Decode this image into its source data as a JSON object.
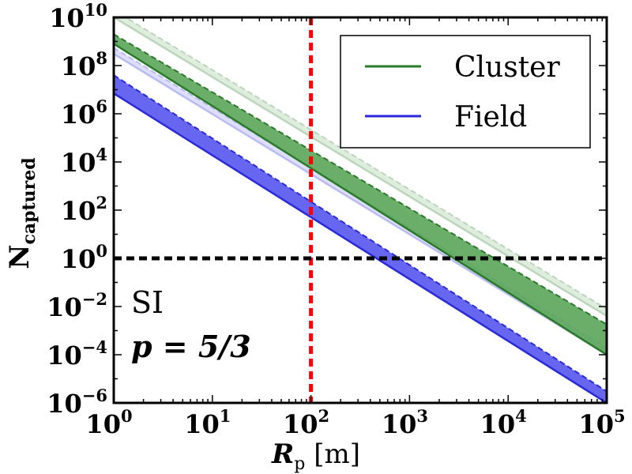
{
  "chart_data": {
    "type": "line",
    "xscale": "log",
    "yscale": "log",
    "xlim": [
      1,
      100000
    ],
    "ylim": [
      1e-06,
      10000000000
    ],
    "xlabel": "R_p [m]",
    "ylabel": "N_captured",
    "xticks": [
      1,
      10,
      100,
      1000,
      10000,
      100000
    ],
    "yticks": [
      1e-06,
      0.0001,
      0.01,
      1,
      100,
      10000,
      1000000,
      100000000,
      10000000000
    ],
    "xtick_labels": [
      {
        "base": "10",
        "exp": "0"
      },
      {
        "base": "10",
        "exp": "1"
      },
      {
        "base": "10",
        "exp": "2"
      },
      {
        "base": "10",
        "exp": "3"
      },
      {
        "base": "10",
        "exp": "4"
      },
      {
        "base": "10",
        "exp": "5"
      }
    ],
    "ytick_labels": [
      {
        "base": "10",
        "exp": "−6"
      },
      {
        "base": "10",
        "exp": "−4"
      },
      {
        "base": "10",
        "exp": "−2"
      },
      {
        "base": "10",
        "exp": "0"
      },
      {
        "base": "10",
        "exp": "2"
      },
      {
        "base": "10",
        "exp": "4"
      },
      {
        "base": "10",
        "exp": "6"
      },
      {
        "base": "10",
        "exp": "8"
      },
      {
        "base": "10",
        "exp": "10"
      }
    ],
    "legend": {
      "placement": "top-right",
      "entries": [
        {
          "name": "Cluster",
          "color": "#2a7a2a"
        },
        {
          "name": "Field",
          "color": "#2a2ad8"
        }
      ]
    },
    "annotations": [
      "SI",
      "p = 5/3"
    ],
    "reference_lines": [
      {
        "orientation": "vertical",
        "x": 100,
        "color": "#ff0000",
        "style": "dashed"
      },
      {
        "orientation": "horizontal",
        "y": 1,
        "color": "#000000",
        "style": "dashed"
      }
    ],
    "series": [
      {
        "name": "Cluster",
        "x": [
          1,
          100000
        ],
        "y_upper": [
          2000000000.0,
          0.0018
        ],
        "y_lower": [
          800000000.0,
          0.0001
        ],
        "color": "#2a7a2a",
        "fill": "#5aa55a",
        "opacity": 0.9
      },
      {
        "name": "Field",
        "x": [
          1,
          100000
        ],
        "y_upper": [
          40000000.0,
          3e-06
        ],
        "y_lower": [
          7000000.0,
          1e-06
        ],
        "color": "#2a2ad8",
        "fill": "#5555ee",
        "opacity": 0.9
      },
      {
        "name": "Cluster",
        "x": [
          1,
          100000
        ],
        "y_upper": [
          20000000000.0,
          0.008
        ],
        "y_lower": [
          10000000000.0,
          0.004
        ],
        "color": "#2a7a2a",
        "fill": "#5aa55a",
        "opacity": 0.2
      },
      {
        "name": "Field",
        "x": [
          1,
          100000
        ],
        "y_upper": [
          550000000.0,
          0.0002
        ],
        "y_lower": [
          300000000.0,
          0.0001
        ],
        "color": "#2a2ad8",
        "fill": "#5555ee",
        "opacity": 0.2
      }
    ]
  }
}
